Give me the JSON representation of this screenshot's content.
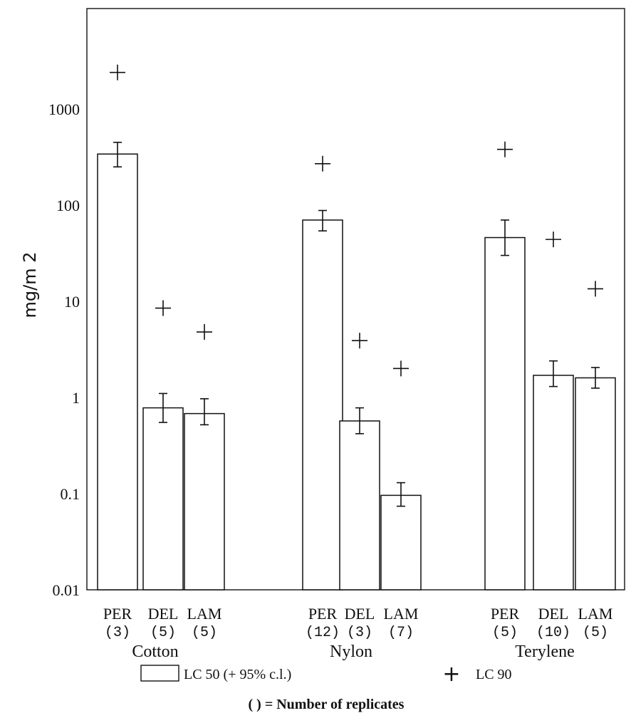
{
  "chart_data": {
    "type": "bar",
    "ylabel": "mg/m 2",
    "yscale": "log",
    "ylim": [
      0.01,
      10000
    ],
    "yticks": [
      "1000",
      "100",
      "10",
      "1",
      "0.1",
      "0.01"
    ],
    "groups": [
      {
        "name": "Cotton",
        "bars": [
          {
            "label": "PER",
            "replicates": "(3)",
            "lc50": 340,
            "ci_low": 250,
            "ci_high": 450,
            "lc90": 2400
          },
          {
            "label": "DEL",
            "replicates": "(5)",
            "lc50": 0.78,
            "ci_low": 0.55,
            "ci_high": 1.1,
            "lc90": 8.5
          },
          {
            "label": "LAM",
            "replicates": "(5)",
            "lc50": 0.68,
            "ci_low": 0.52,
            "ci_high": 0.97,
            "lc90": 4.8
          }
        ]
      },
      {
        "name": "Nylon",
        "bars": [
          {
            "label": "PER",
            "replicates": "(12)",
            "lc50": 70,
            "ci_low": 54,
            "ci_high": 88,
            "lc90": 270
          },
          {
            "label": "DEL",
            "replicates": "(3)",
            "lc50": 0.57,
            "ci_low": 0.42,
            "ci_high": 0.78,
            "lc90": 3.9
          },
          {
            "label": "LAM",
            "replicates": "(7)",
            "lc50": 0.096,
            "ci_low": 0.074,
            "ci_high": 0.13,
            "lc90": 2.0
          }
        ]
      },
      {
        "name": "Terylene",
        "bars": [
          {
            "label": "PER",
            "replicates": "(5)",
            "lc50": 46,
            "ci_low": 30,
            "ci_high": 70,
            "lc90": 380
          },
          {
            "label": "DEL",
            "replicates": "(10)",
            "lc50": 1.7,
            "ci_low": 1.3,
            "ci_high": 2.4,
            "lc90": 44
          },
          {
            "label": "LAM",
            "replicates": "(5)",
            "lc50": 1.6,
            "ci_low": 1.25,
            "ci_high": 2.05,
            "lc90": 13.5
          }
        ]
      }
    ],
    "legend": {
      "bar_label": "LC 50 (+ 95% c.l.)",
      "plus_symbol": "+",
      "plus_label": "LC 90"
    },
    "footnote": "( ) = Number of replicates"
  }
}
